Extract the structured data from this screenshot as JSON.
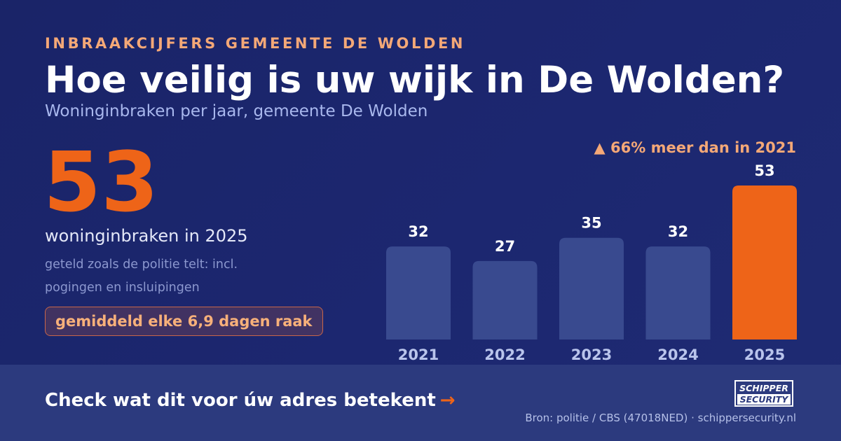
{
  "eyebrow": "INBRAAKCIJFERS GEMEENTE DE WOLDEN",
  "title": "Hoe veilig is uw wijk in De Wolden?",
  "subtitle": "Woninginbraken per jaar, gemeente De Wolden",
  "highlight": {
    "number": "53",
    "caption": "woninginbraken in 2025",
    "note": "geteld zoals de politie telt: incl. pogingen en insluipingen",
    "pill": "gemiddeld elke 6,9 dagen raak"
  },
  "delta": {
    "icon": "triangle-up-icon",
    "text": "▲ 66% meer dan in 2021"
  },
  "colors": {
    "background": "#1c2770",
    "bar": "#394a8f",
    "highlight": "#ee6418",
    "accent": "#f4a877",
    "footer": "#2c3a7e"
  },
  "chart_data": {
    "type": "bar",
    "categories": [
      "2021",
      "2022",
      "2023",
      "2024",
      "2025"
    ],
    "values": [
      32,
      27,
      35,
      32,
      53
    ],
    "highlight_index": 4,
    "ylim": [
      0,
      53
    ],
    "title": "",
    "xlabel": "",
    "ylabel": "",
    "grid": false,
    "data_labels": true
  },
  "footer": {
    "cta": "Check wat dit voor úw adres betekent",
    "cta_arrow": "→",
    "logo_line1": "SCHIPPER",
    "logo_line2": "SECURITY",
    "source": "Bron: politie / CBS (47018NED) · schippersecurity.nl"
  }
}
